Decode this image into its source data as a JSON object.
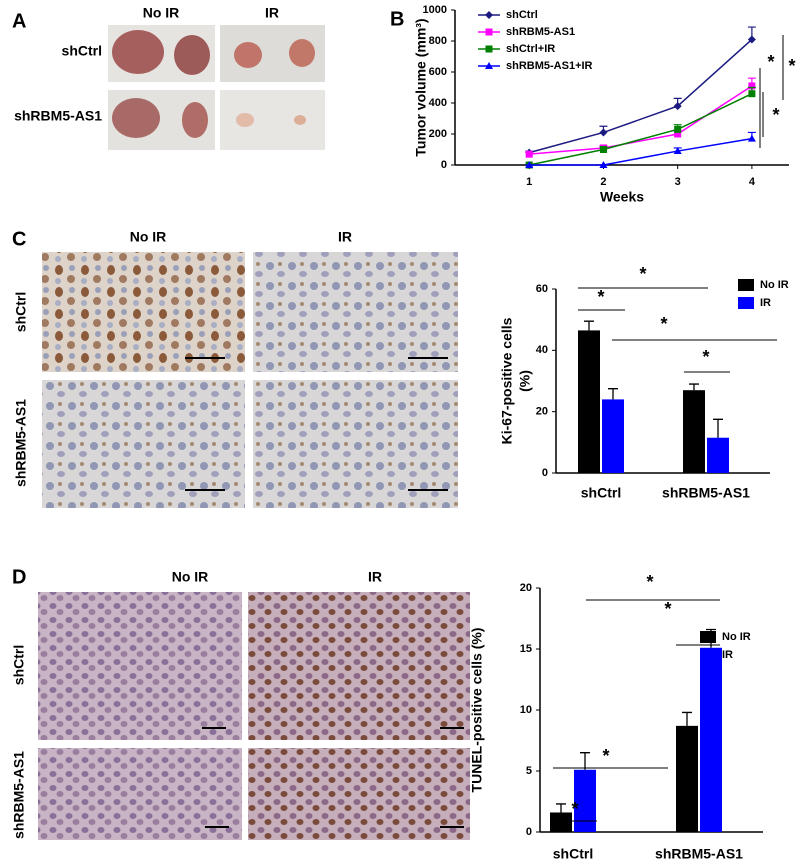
{
  "panels": {
    "A": {
      "letter": "A",
      "columns": [
        "No IR",
        "IR"
      ],
      "rows": [
        "shCtrl",
        "shRBM5-AS1"
      ]
    },
    "B": {
      "letter": "B"
    },
    "C": {
      "letter": "C",
      "columns": [
        "No IR",
        "IR"
      ],
      "rows": [
        "shCtrl",
        "shRBM5-AS1"
      ]
    },
    "D": {
      "letter": "D",
      "columns": [
        "No IR",
        "IR"
      ],
      "rows": [
        "shCtrl",
        "shRBM5-AS1"
      ]
    }
  },
  "chart_data": [
    {
      "type": "line",
      "xlabel": "Weeks",
      "ylabel": "Tumor volume (mm³)",
      "x": [
        1,
        2,
        3,
        4
      ],
      "xlim": [
        0,
        4.5
      ],
      "xticks": [
        1,
        2,
        3,
        4
      ],
      "ylim": [
        0,
        1000
      ],
      "yticks": [
        0,
        200,
        400,
        600,
        800,
        1000
      ],
      "series": [
        {
          "name": "shCtrl",
          "color": "#1a1a80",
          "marker": "diamond",
          "values": [
            80,
            210,
            380,
            810
          ],
          "errors": [
            10,
            40,
            50,
            80
          ]
        },
        {
          "name": "shRBM5-AS1",
          "color": "#ff00ff",
          "marker": "square",
          "values": [
            70,
            110,
            200,
            510
          ],
          "errors": [
            10,
            15,
            20,
            50
          ]
        },
        {
          "name": "shCtrl+IR",
          "color": "#008000",
          "marker": "square",
          "values": [
            0,
            100,
            230,
            460
          ],
          "errors": [
            5,
            15,
            30,
            40
          ]
        },
        {
          "name": "shRBM5-AS1+IR",
          "color": "#0000ff",
          "marker": "triangle",
          "values": [
            0,
            0,
            90,
            170
          ],
          "errors": [
            0,
            0,
            20,
            40
          ]
        }
      ],
      "annotations": [
        "*",
        "*",
        "*"
      ]
    },
    {
      "type": "bar",
      "ylabel": [
        "Ki-67-positive cells",
        "(%)"
      ],
      "categories": [
        "shCtrl",
        "shRBM5-AS1"
      ],
      "ylim": [
        0,
        60
      ],
      "yticks": [
        0,
        20,
        40,
        60
      ],
      "series": [
        {
          "name": "No IR",
          "color": "#000000",
          "values": [
            46.5,
            27
          ],
          "errors": [
            3,
            2
          ]
        },
        {
          "name": "IR",
          "color": "#0000ff",
          "values": [
            24,
            11.5
          ],
          "errors": [
            3.5,
            6
          ]
        }
      ],
      "annotations": [
        "*",
        "*",
        "*",
        "*"
      ]
    },
    {
      "type": "bar",
      "ylabel": [
        "TUNEL-positive cells (%)"
      ],
      "categories": [
        "shCtrl",
        "shRBM5-AS1"
      ],
      "ylim": [
        0,
        20
      ],
      "yticks": [
        0,
        5,
        10,
        15,
        20
      ],
      "series": [
        {
          "name": "No IR",
          "color": "#000000",
          "values": [
            1.6,
            8.7
          ],
          "errors": [
            0.7,
            1.1
          ]
        },
        {
          "name": "IR",
          "color": "#0000ff",
          "values": [
            5.1,
            15.1
          ],
          "errors": [
            1.4,
            1.5
          ]
        }
      ],
      "annotations": [
        "*",
        "*",
        "*",
        "*"
      ]
    }
  ]
}
